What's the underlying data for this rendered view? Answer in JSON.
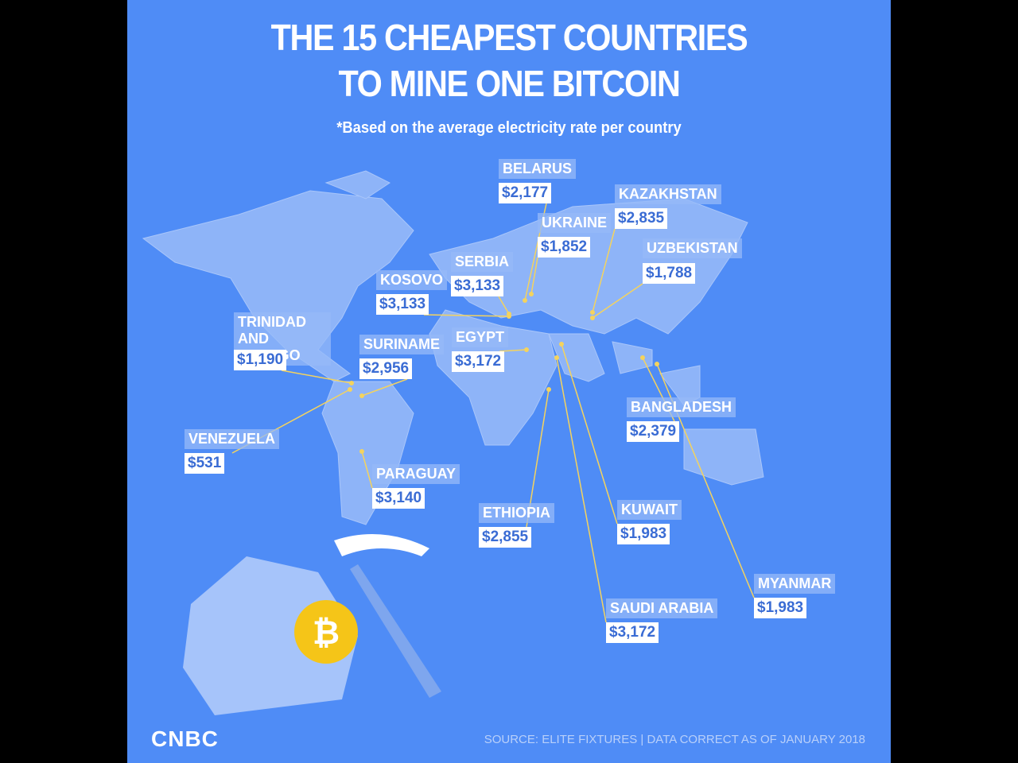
{
  "header": {
    "title_line1": "THE 15 CHEAPEST COUNTRIES",
    "title_line2": "TO MINE ONE BITCOIN",
    "subtitle": "*Based on the average electricity rate per country"
  },
  "labels": [
    {
      "name": "BELARUS",
      "price": "$2,177"
    },
    {
      "name": "KAZAKHSTAN",
      "price": "$2,835"
    },
    {
      "name": "UKRAINE",
      "price": "$1,852"
    },
    {
      "name": "UZBEKISTAN",
      "price": "$1,788"
    },
    {
      "name": "SERBIA",
      "price": "$3,133"
    },
    {
      "name": "KOSOVO",
      "price": "$3,133"
    },
    {
      "name": "TRINIDAD AND TOBAGO",
      "price": "$1,190"
    },
    {
      "name": "SURINAME",
      "price": "$2,956"
    },
    {
      "name": "EGYPT",
      "price": "$3,172"
    },
    {
      "name": "VENEZUELA",
      "price": "$531"
    },
    {
      "name": "PARAGUAY",
      "price": "$3,140"
    },
    {
      "name": "ETHIOPIA",
      "price": "$2,855"
    },
    {
      "name": "KUWAIT",
      "price": "$1,983"
    },
    {
      "name": "SAUDI ARABIA",
      "price": "$3,172"
    },
    {
      "name": "MYANMAR",
      "price": "$1,983"
    },
    {
      "name": "BANGLADESH",
      "price": "$2,379"
    }
  ],
  "footer": {
    "logo": "CNBC",
    "source": "SOURCE: ELITE FIXTURES | DATA CORRECT AS OF JANUARY 2018"
  }
}
